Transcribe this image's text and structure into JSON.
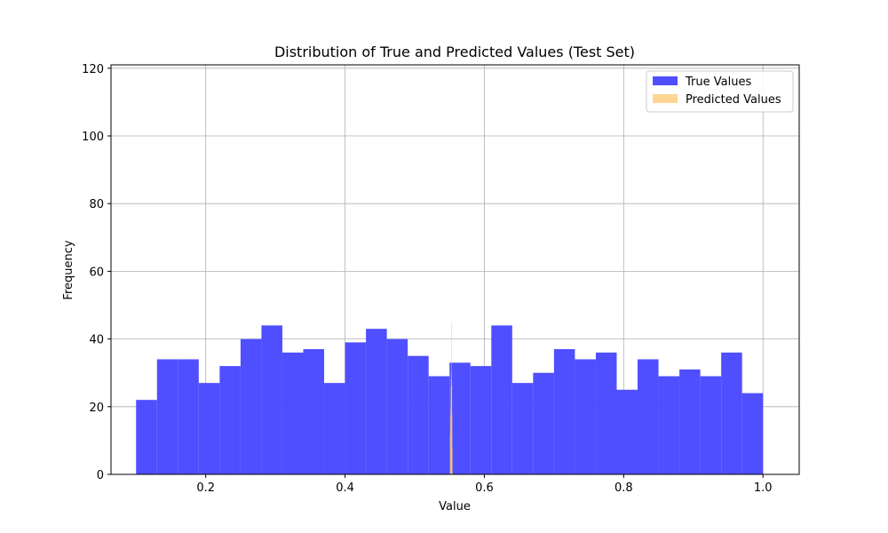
{
  "chart_data": {
    "type": "bar",
    "title": "Distribution of True and Predicted Values (Test Set)",
    "xlabel": "Value",
    "ylabel": "Frequency",
    "xlim": [
      0.064,
      1.052
    ],
    "ylim": [
      0,
      121
    ],
    "xticks": [
      0.2,
      0.4,
      0.6,
      0.8,
      1.0
    ],
    "xtick_labels": [
      "0.2",
      "0.4",
      "0.6",
      "0.8",
      "1.0"
    ],
    "yticks": [
      0,
      20,
      40,
      60,
      80,
      100,
      120
    ],
    "ytick_labels": [
      "0",
      "20",
      "40",
      "60",
      "80",
      "100",
      "120"
    ],
    "grid": true,
    "legend_position": "top-right",
    "series": [
      {
        "name": "True Values",
        "color": "#4b4bff",
        "bin_edges": [
          0.1,
          0.13,
          0.16,
          0.19,
          0.22,
          0.25,
          0.28,
          0.31,
          0.34,
          0.37,
          0.4,
          0.43,
          0.46,
          0.49,
          0.52,
          0.55,
          0.58,
          0.61,
          0.64,
          0.67,
          0.7,
          0.73,
          0.76,
          0.79,
          0.82,
          0.85,
          0.88,
          0.91,
          0.94,
          0.97,
          1.0
        ],
        "counts": [
          22,
          34,
          34,
          27,
          32,
          40,
          44,
          36,
          37,
          27,
          39,
          43,
          40,
          35,
          29,
          33,
          32,
          44,
          27,
          30,
          37,
          34,
          36,
          25,
          34,
          29,
          31,
          29,
          36,
          24
        ]
      },
      {
        "name": "Predicted Values",
        "color": "#fcc870",
        "bin_edges": [
          0.5508,
          0.5511,
          0.5514,
          0.5517,
          0.552,
          0.5523,
          0.5526,
          0.5529,
          0.5532,
          0.5535,
          0.5538
        ],
        "counts": [
          12,
          17,
          20,
          26,
          30,
          45,
          28,
          26,
          18,
          8
        ]
      }
    ]
  }
}
